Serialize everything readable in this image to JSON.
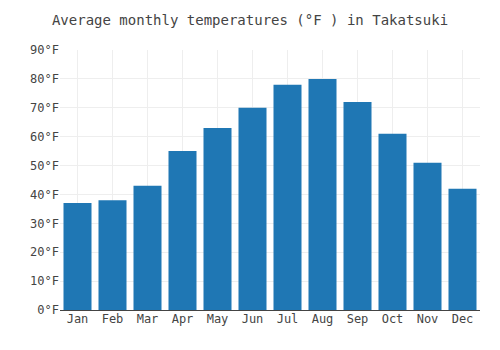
{
  "chart_data": {
    "type": "bar",
    "title": "Average monthly temperatures (°F ) in Takatsuki",
    "categories": [
      "Jan",
      "Feb",
      "Mar",
      "Apr",
      "May",
      "Jun",
      "Jul",
      "Aug",
      "Sep",
      "Oct",
      "Nov",
      "Dec"
    ],
    "values": [
      37,
      38,
      43,
      55,
      63,
      70,
      78,
      80,
      72,
      61,
      51,
      42
    ],
    "ylim": [
      0,
      90
    ],
    "yticks": [
      {
        "value": 0,
        "label": "0°F"
      },
      {
        "value": 10,
        "label": "10°F"
      },
      {
        "value": 20,
        "label": "20°F"
      },
      {
        "value": 30,
        "label": "30°F"
      },
      {
        "value": 40,
        "label": "40°F"
      },
      {
        "value": 50,
        "label": "50°F"
      },
      {
        "value": 60,
        "label": "60°F"
      },
      {
        "value": 70,
        "label": "70°F"
      },
      {
        "value": 80,
        "label": "80°F"
      },
      {
        "value": 90,
        "label": "90°F"
      }
    ],
    "grid": true
  }
}
